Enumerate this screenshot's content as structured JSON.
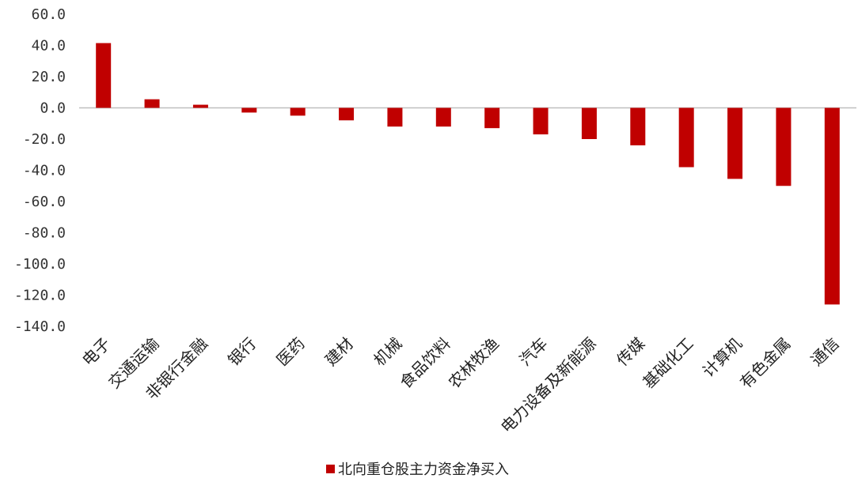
{
  "chart_data": {
    "type": "bar",
    "categories": [
      "电子",
      "交通运输",
      "非银行金融",
      "银行",
      "医药",
      "建材",
      "机械",
      "食品饮料",
      "农林牧渔",
      "汽车",
      "电力设备及新能源",
      "传媒",
      "基础化工",
      "计算机",
      "有色金属",
      "通信"
    ],
    "series": [
      {
        "name": "北向重仓股主力资金净买入",
        "values": [
          41.5,
          5.5,
          2.0,
          -3.0,
          -5.0,
          -8.0,
          -12.0,
          -12.0,
          -13.0,
          -17.0,
          -20.0,
          -24.0,
          -38.0,
          -45.5,
          -50.0,
          -126.0
        ]
      }
    ],
    "yticks": [
      "60.0",
      "40.0",
      "20.0",
      "0.0",
      "-20.0",
      "-40.0",
      "-60.0",
      "-80.0",
      "-100.0",
      "-120.0",
      "-140.0"
    ],
    "ylim": [
      -140,
      60
    ],
    "grid": false,
    "legend_position": "bottom",
    "colors": {
      "bar": "#C00000",
      "axis": "#BFBFBF"
    }
  }
}
